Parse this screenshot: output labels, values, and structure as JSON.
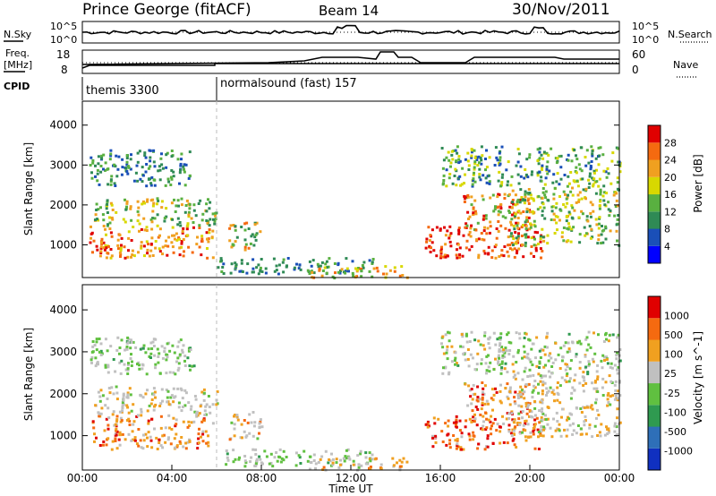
{
  "header": {
    "title": "Prince George (fitACF)",
    "beam": "Beam 14",
    "date": "30/Nov/2011"
  },
  "panels": {
    "nsky": {
      "label": "N.Sky",
      "ticks_left": [
        "10^5",
        "10^0"
      ],
      "right_label": "N.Search",
      "ticks_right": [
        "10^5",
        "10^0"
      ]
    },
    "freq": {
      "label_line1": "Freq.",
      "label_line2": "[MHz]",
      "ticks_left": [
        "18",
        "8"
      ],
      "right_label": "Nave",
      "ticks_right": [
        "60",
        "0"
      ]
    },
    "cpid": {
      "label": "CPID",
      "segments": [
        {
          "label": "themis 3300",
          "start_hour": 0
        },
        {
          "label": "normalsound (fast) 157",
          "start_hour": 6
        }
      ]
    }
  },
  "chart_data": [
    {
      "type": "heatmap",
      "title": "",
      "quantity": "Power",
      "colorbar_label": "Power [dB]",
      "colorbar_ticks": [
        "4",
        "8",
        "12",
        "16",
        "20",
        "24",
        "28"
      ],
      "colorbar_colors": [
        "#0000ff",
        "#1a4fb8",
        "#2f8a55",
        "#59b040",
        "#d8d800",
        "#f0a020",
        "#f56a10",
        "#e00000"
      ],
      "ylabel": "Slant Range [km]",
      "yticks": [
        "1000",
        "2000",
        "3000",
        "4000"
      ],
      "ylim": [
        180,
        4600
      ],
      "xlim_hours": [
        0,
        24
      ]
    },
    {
      "type": "heatmap",
      "title": "",
      "quantity": "Velocity",
      "colorbar_label": "Velocity [m s^-1]",
      "colorbar_ticks": [
        "1000",
        "500",
        "100",
        "25",
        "-25",
        "-100",
        "-500",
        "-1000"
      ],
      "colorbar_colors": [
        "#1030c0",
        "#2e6fb8",
        "#2f9a50",
        "#60c040",
        "#c0c0c0",
        "#f0a020",
        "#f56a10",
        "#e00000"
      ],
      "ylabel": "Slant Range [km]",
      "yticks": [
        "1000",
        "2000",
        "3000",
        "4000"
      ],
      "ylim": [
        180,
        4600
      ],
      "xlabel": "Time UT",
      "xticks": [
        "00:00",
        "04:00",
        "08:00",
        "12:00",
        "16:00",
        "20:00",
        "00:00"
      ],
      "xlim_hours": [
        0,
        24
      ]
    }
  ]
}
